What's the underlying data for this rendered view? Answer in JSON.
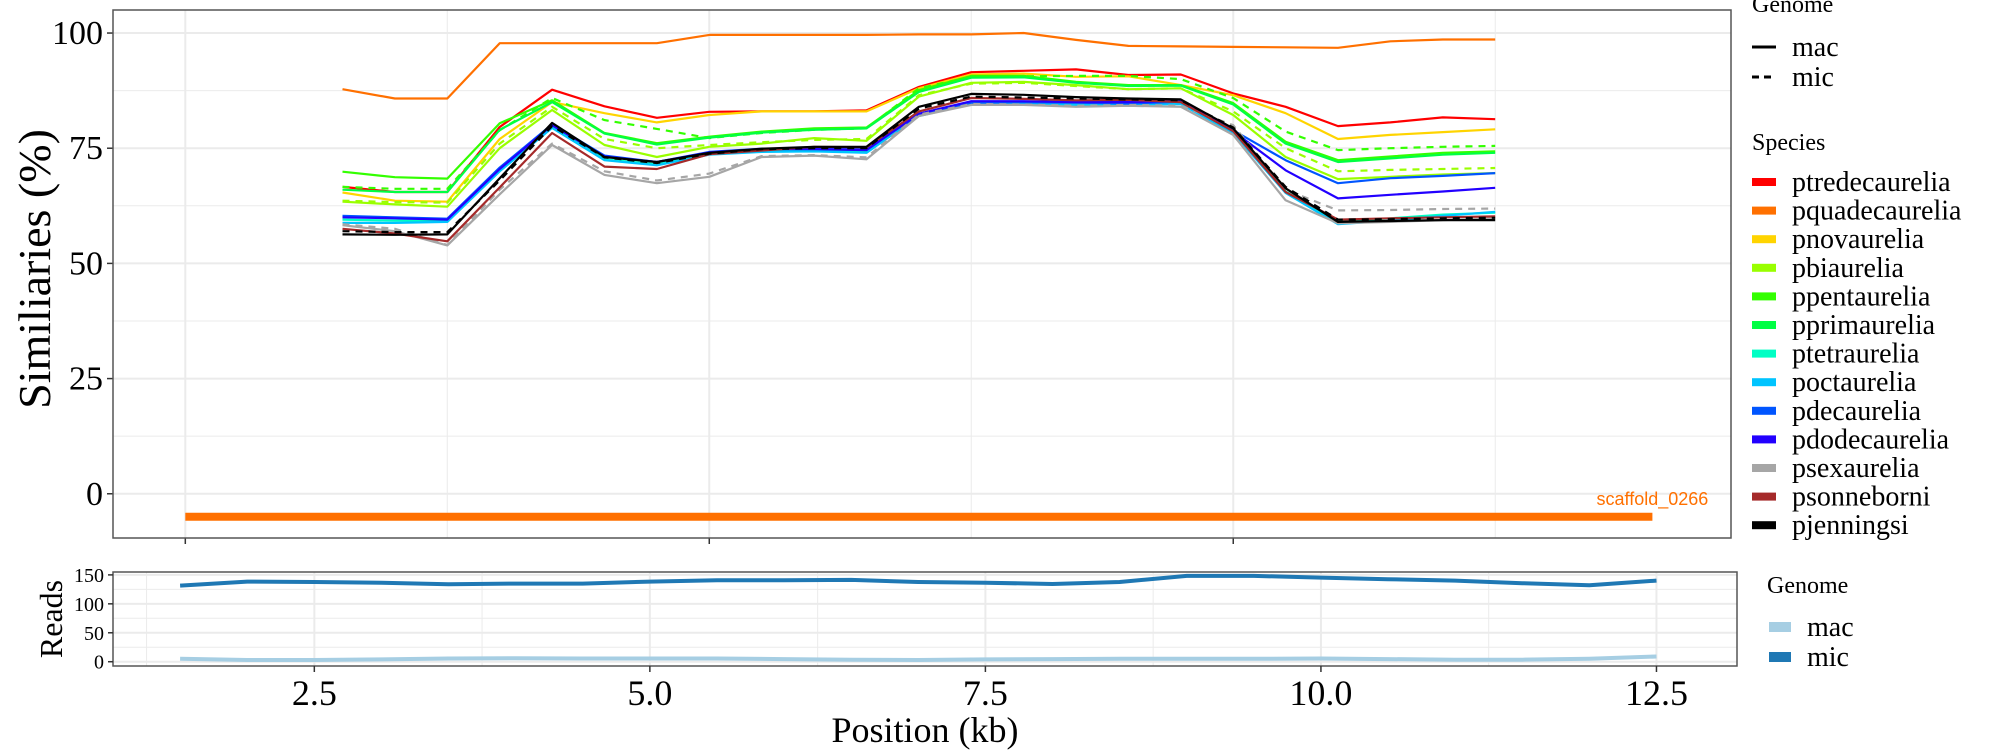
{
  "chart_data": [
    {
      "type": "line",
      "panel": "similarity",
      "ylabel": "Similiaries (%)",
      "xlabel": "",
      "ylim": [
        -9.6,
        105
      ],
      "xlim": [
        -0.69,
        14.75
      ],
      "yticks": [
        0,
        25,
        50,
        75,
        100
      ],
      "xticks_unlabeled": [
        0,
        5,
        10
      ],
      "grid": true,
      "x": [
        1.5,
        2.0,
        2.5,
        3.0,
        3.5,
        4.0,
        4.5,
        5.0,
        5.5,
        6.0,
        6.5,
        7.0,
        7.5,
        8.0,
        8.5,
        9.0,
        9.5,
        10.0,
        10.5,
        11.0,
        11.5,
        12.0,
        12.5
      ],
      "scaffold": {
        "label": "scaffold_0266",
        "start": 0,
        "end": 14.0,
        "y": -5,
        "color": "#FF7000"
      },
      "legend_genome": {
        "title": "Genome",
        "entries": [
          "mac",
          "mic"
        ]
      },
      "legend_species": {
        "title": "Species",
        "placement": "right"
      },
      "species": [
        {
          "name": "ptredecaurelia",
          "color": "#FF0000"
        },
        {
          "name": "pquadecaurelia",
          "color": "#FF7000"
        },
        {
          "name": "pnovaurelia",
          "color": "#FFD400"
        },
        {
          "name": "pbiaurelia",
          "color": "#99FF00"
        },
        {
          "name": "ppentaurelia",
          "color": "#33FF00"
        },
        {
          "name": "pprimaurelia",
          "color": "#00FF44"
        },
        {
          "name": "ptetraurelia",
          "color": "#00FFC4"
        },
        {
          "name": "poctaurelia",
          "color": "#00C4FF"
        },
        {
          "name": "pdecaurelia",
          "color": "#0055FF"
        },
        {
          "name": "pdodecaurelia",
          "color": "#2200FF"
        },
        {
          "name": "psexaurelia",
          "color": "#A6A6A6"
        },
        {
          "name": "psonneborni",
          "color": "#A52A2A"
        },
        {
          "name": "pjenningsi",
          "color": "#000000"
        }
      ],
      "series": [
        {
          "species": "ptredecaurelia",
          "genome": "mac",
          "values": [
            66.6,
            65.5,
            65.5,
            79.6,
            87.7,
            84.1,
            81.6,
            82.9,
            83,
            83,
            83.2,
            88.3,
            91.5,
            91.8,
            92.1,
            90.9,
            91,
            86.9,
            84,
            79.8,
            80.6,
            81.7,
            81.3
          ]
        },
        {
          "species": "pquadecaurelia",
          "genome": "mac",
          "values": [
            87.8,
            85.8,
            85.8,
            97.8,
            97.8,
            97.8,
            97.8,
            99.6,
            99.6,
            99.6,
            99.6,
            99.7,
            99.7,
            100,
            98.5,
            97.2,
            97.1,
            97,
            96.9,
            96.8,
            98.2,
            98.6,
            98.6
          ]
        },
        {
          "species": "pnovaurelia",
          "genome": "mac",
          "values": [
            65.4,
            63.6,
            63.4,
            77,
            85,
            82.6,
            80.6,
            82.2,
            83,
            83,
            83,
            88,
            91,
            91.2,
            90.5,
            90.6,
            88.7,
            86.5,
            82.6,
            77,
            77.9,
            78.5,
            79.1
          ]
        },
        {
          "species": "pbiaurelia",
          "genome": "mac",
          "values": [
            63.4,
            62.8,
            62.3,
            75,
            83.3,
            75.7,
            73.1,
            75.3,
            76,
            77.2,
            76.6,
            86.2,
            89.2,
            89.4,
            88.7,
            87.8,
            88,
            82.2,
            73.1,
            68.3,
            68.8,
            69.3,
            69.6
          ]
        },
        {
          "species": "pbiaurelia",
          "genome": "mic",
          "values": [
            63.6,
            63.3,
            63.2,
            76,
            84,
            77,
            75,
            75.7,
            76.3,
            76.8,
            77,
            86.5,
            89,
            89.2,
            88.5,
            87.8,
            88,
            83,
            75,
            70,
            70.3,
            70.5,
            70.7
          ]
        },
        {
          "species": "ppentaurelia",
          "genome": "mac",
          "values": [
            69.9,
            68.7,
            68.4,
            80.4,
            85.4,
            78.3,
            76.1,
            77.5,
            78.6,
            79.3,
            79.5,
            87.6,
            90.7,
            90.7,
            89.4,
            88.7,
            88.7,
            84.8,
            76.4,
            72.4,
            73.2,
            74,
            74.3
          ]
        },
        {
          "species": "ppentaurelia",
          "genome": "mic",
          "values": [
            66.6,
            66.2,
            66.2,
            78.9,
            85.9,
            81.1,
            79.2,
            77.2,
            78.3,
            79,
            79.3,
            88,
            90.5,
            90.6,
            90.7,
            90.7,
            90,
            85.9,
            78.6,
            74.6,
            75,
            75.3,
            75.5
          ]
        },
        {
          "species": "pprimaurelia",
          "genome": "mac",
          "values": [
            66,
            65.5,
            65.5,
            79,
            85,
            78.2,
            75.8,
            77.3,
            78.4,
            79,
            79.3,
            87.2,
            90.3,
            90.4,
            89.2,
            88.5,
            88.6,
            84.5,
            76,
            72,
            72.8,
            73.6,
            74
          ]
        },
        {
          "species": "ptetraurelia",
          "genome": "mac",
          "values": [
            59.5,
            59.3,
            59.3,
            70.5,
            79.8,
            72.6,
            71.5,
            73.8,
            74.4,
            74.5,
            74.2,
            82.2,
            84.8,
            84.8,
            84.6,
            84.7,
            84.8,
            78.6,
            65.6,
            59,
            59.8,
            60.6,
            61
          ]
        },
        {
          "species": "poctaurelia",
          "genome": "mac",
          "values": [
            58.8,
            58.8,
            59,
            70,
            79.4,
            72.4,
            71.3,
            73.6,
            74.2,
            74.3,
            74,
            82,
            84.6,
            84.6,
            84.4,
            84.5,
            84.6,
            78.3,
            65.3,
            58.5,
            59.3,
            60.3,
            61.2
          ]
        },
        {
          "species": "pdecaurelia",
          "genome": "mac",
          "values": [
            60.3,
            60,
            59.7,
            70.8,
            80.2,
            73.4,
            72,
            74.2,
            74.9,
            74.9,
            74.9,
            82.2,
            84.9,
            85,
            84.9,
            84.7,
            85.1,
            78.9,
            72.4,
            67.4,
            68.5,
            69,
            69.6
          ]
        },
        {
          "species": "pdodecaurelia",
          "genome": "mac",
          "values": [
            60,
            59.8,
            59.5,
            70.5,
            80,
            73.2,
            72,
            74.1,
            74.8,
            74.8,
            74.6,
            82.5,
            85.2,
            85.2,
            85,
            85,
            85.3,
            78.7,
            70.2,
            64.1,
            64.9,
            65.6,
            66.4
          ]
        },
        {
          "species": "psexaurelia",
          "genome": "mac",
          "values": [
            58.3,
            57,
            53.9,
            65,
            75.7,
            69.2,
            67.4,
            68.8,
            73.1,
            73.4,
            72.6,
            82,
            84.4,
            84.4,
            84,
            84.2,
            84,
            77.9,
            63.7,
            58.7,
            59,
            59.4,
            59.8
          ]
        },
        {
          "species": "psexaurelia",
          "genome": "mic",
          "values": [
            58.5,
            57.5,
            54,
            66,
            76,
            70,
            68,
            69.5,
            73.3,
            73.5,
            73,
            82.3,
            84.6,
            84.5,
            84.2,
            84.4,
            84.2,
            80,
            66,
            61.5,
            61.6,
            61.8,
            61.9
          ]
        },
        {
          "species": "psonneborni",
          "genome": "mac",
          "values": [
            57.5,
            56.5,
            54.8,
            66.5,
            78.3,
            71,
            70.5,
            73.7,
            74.5,
            75.3,
            75.2,
            83,
            85.9,
            85.7,
            85.4,
            85.5,
            85,
            78.7,
            65.5,
            59.5,
            59.8,
            60,
            60.2
          ]
        },
        {
          "species": "pjenningsi",
          "genome": "mac",
          "values": [
            56.3,
            56.2,
            56.3,
            68.5,
            80.5,
            73.1,
            72,
            74,
            74.9,
            75.3,
            75.3,
            84,
            86.8,
            86.6,
            86.1,
            85.8,
            85.6,
            79.3,
            66.3,
            59,
            59.2,
            59.4,
            59.4
          ]
        },
        {
          "species": "pjenningsi",
          "genome": "mic",
          "values": [
            57,
            56.8,
            56.8,
            68,
            79.8,
            73,
            71.8,
            73.8,
            74.8,
            75,
            75,
            83.6,
            86.2,
            86,
            85.8,
            85.6,
            85.4,
            79.5,
            66.6,
            59.5,
            59.6,
            59.8,
            59.9
          ]
        }
      ]
    },
    {
      "type": "line",
      "panel": "reads",
      "ylabel": "Reads",
      "xlabel": "Position (kb)",
      "ylim": [
        -7.4,
        155
      ],
      "xlim": [
        1.0,
        13.1
      ],
      "yticks": [
        0,
        50,
        100,
        150
      ],
      "xticks": [
        2.5,
        5.0,
        7.5,
        10.0,
        12.5
      ],
      "xtick_labels": [
        "2.5",
        "5.0",
        "7.5",
        "10.0",
        "12.5"
      ],
      "grid": true,
      "x": [
        1.5,
        2.0,
        2.5,
        3.0,
        3.5,
        4.0,
        4.5,
        5.0,
        5.5,
        6.0,
        6.5,
        7.0,
        7.5,
        8.0,
        8.5,
        9.0,
        9.5,
        10.0,
        10.5,
        11.0,
        11.5,
        12.0,
        12.5
      ],
      "legend": {
        "title": "Genome",
        "placement": "right"
      },
      "series": [
        {
          "name": "mac",
          "color": "#A6CEE3",
          "values": [
            5,
            3,
            3,
            4,
            5.5,
            6,
            5.5,
            5.5,
            5.5,
            4.5,
            3.5,
            3,
            4,
            4.5,
            5,
            5,
            5,
            5.5,
            4.5,
            3.5,
            3.5,
            5,
            9
          ]
        },
        {
          "name": "mic",
          "color": "#1F78B4",
          "values": [
            131.5,
            138.4,
            137.8,
            136.6,
            133.9,
            135,
            135,
            138.4,
            140.8,
            140.8,
            141.3,
            137.8,
            136.6,
            134.3,
            137.8,
            148.3,
            148.3,
            145.4,
            142.6,
            140.2,
            135.6,
            132.1,
            140.2
          ]
        }
      ]
    }
  ]
}
